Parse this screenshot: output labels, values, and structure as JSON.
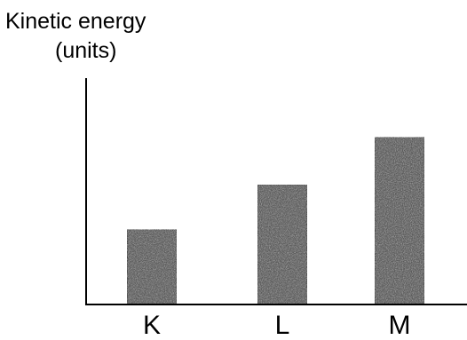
{
  "chart_data": {
    "type": "bar",
    "title": "",
    "ylabel_lines": [
      "Kinetic energy",
      "(units)"
    ],
    "xlabel": "",
    "categories": [
      "K",
      "L",
      "M"
    ],
    "values": [
      3,
      4.8,
      6.7
    ],
    "ylim": [
      0,
      8
    ],
    "y_ticks_shown": false,
    "grid": false,
    "legend": "none",
    "bar_color": "#5a5a5a",
    "axis_color": "#000000"
  }
}
